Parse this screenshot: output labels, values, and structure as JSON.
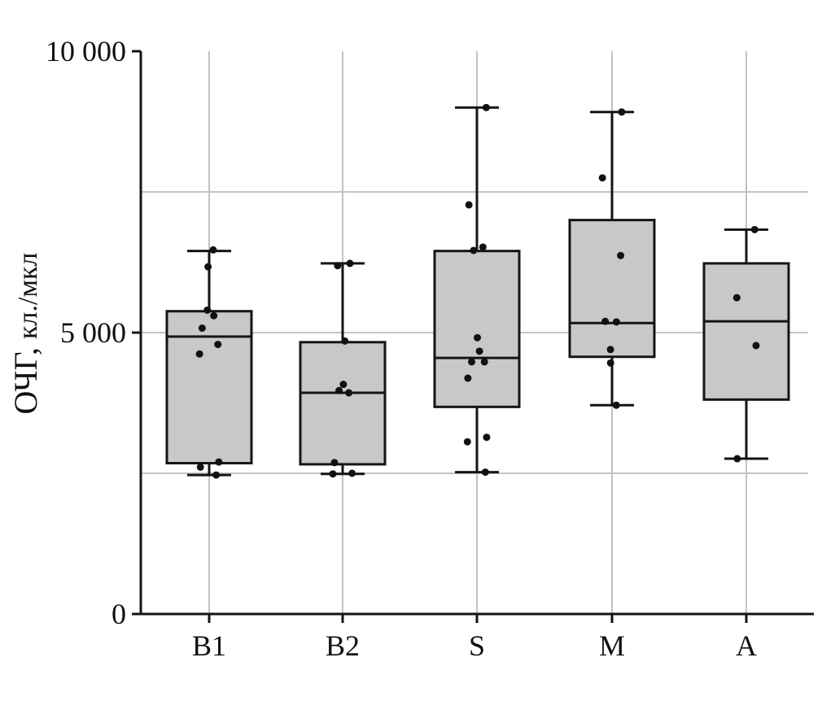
{
  "chart_data": {
    "type": "box",
    "title": "",
    "ylabel_main": "ОЧГ,",
    "ylabel_unit": "кл./мкл",
    "xlabel": "",
    "ylim": [
      0,
      10000
    ],
    "y_ticks": [
      {
        "value": 0,
        "label": "0"
      },
      {
        "value": 5000,
        "label": "5 000"
      },
      {
        "value": 10000,
        "label": "10 000"
      }
    ],
    "gridlines_y": [
      2500,
      5000,
      7500
    ],
    "grid": true,
    "categories": [
      "B1",
      "B2",
      "S",
      "M",
      "A"
    ],
    "boxes": [
      {
        "category": "B1",
        "whisker_low": 2470,
        "q1": 2680,
        "median": 4930,
        "q3": 5380,
        "whisker_high": 6450,
        "points": [
          6470,
          6170,
          5400,
          5300,
          5080,
          4790,
          4620,
          2700,
          2610,
          2470
        ]
      },
      {
        "category": "B2",
        "whisker_low": 2490,
        "q1": 2660,
        "median": 3930,
        "q3": 4830,
        "whisker_high": 6230,
        "points": [
          6230,
          6190,
          4850,
          4080,
          3970,
          3930,
          2690,
          2500,
          2490
        ]
      },
      {
        "category": "S",
        "whisker_low": 2520,
        "q1": 3680,
        "median": 4550,
        "q3": 6450,
        "whisker_high": 9000,
        "points": [
          9000,
          7270,
          6520,
          6460,
          4910,
          4670,
          4480,
          4480,
          4190,
          3140,
          3060,
          2520
        ]
      },
      {
        "category": "M",
        "whisker_low": 3710,
        "q1": 4570,
        "median": 5170,
        "q3": 7000,
        "whisker_high": 8920,
        "points": [
          8920,
          7750,
          6370,
          5200,
          5190,
          4700,
          4460,
          3710
        ]
      },
      {
        "category": "A",
        "whisker_low": 2760,
        "q1": 3810,
        "median": 5200,
        "q3": 6230,
        "whisker_high": 6830,
        "points": [
          6830,
          5620,
          4770,
          2760
        ]
      }
    ],
    "colors": {
      "box_fill": "#c8c8c8",
      "stroke": "#151515",
      "grid": "#c2c2c2",
      "point": "#111111"
    }
  }
}
